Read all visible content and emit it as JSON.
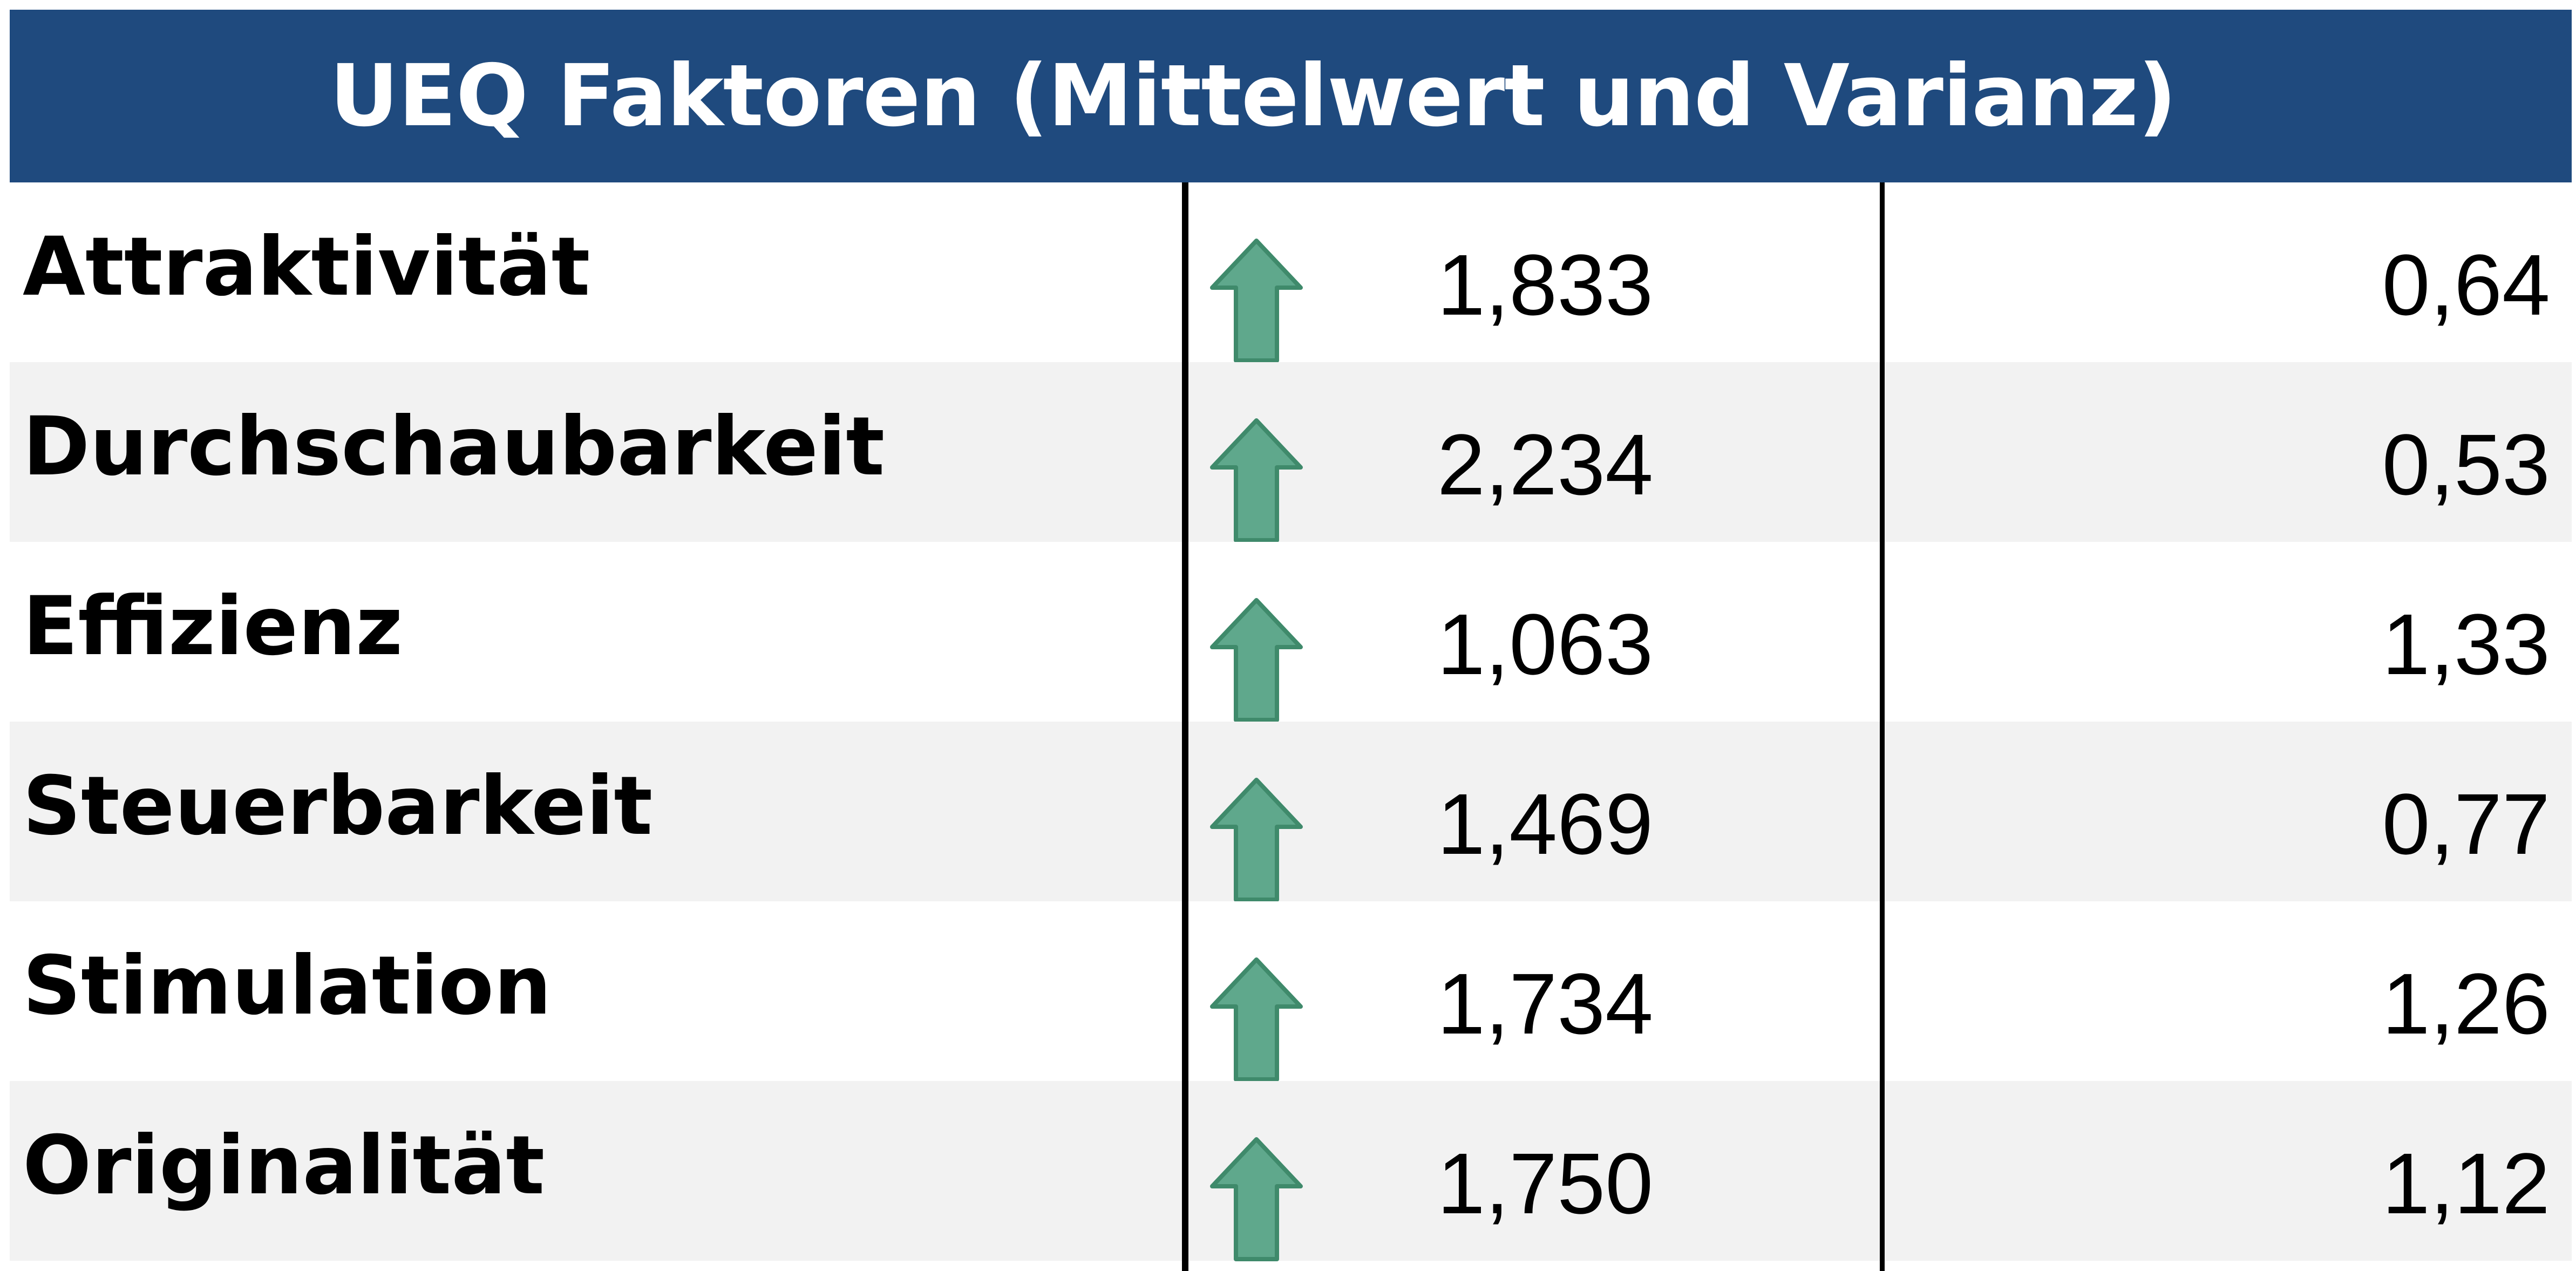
{
  "table": {
    "title": "UEQ Faktoren (Mittelwert und Varianz)",
    "trend_icon": "up-arrow-icon",
    "colors": {
      "header_bg": "#1f4a7e",
      "header_text": "#ffffff",
      "row_shaded": "#f2f2f2",
      "arrow_fill": "#5fa88c",
      "arrow_stroke": "#3f8a6b"
    },
    "rows": [
      {
        "factor": "Attraktivität",
        "mean": "1,833",
        "variance": "0,64",
        "trend": "up"
      },
      {
        "factor": "Durchschaubarkeit",
        "mean": "2,234",
        "variance": "0,53",
        "trend": "up"
      },
      {
        "factor": "Effizienz",
        "mean": "1,063",
        "variance": "1,33",
        "trend": "up"
      },
      {
        "factor": "Steuerbarkeit",
        "mean": "1,469",
        "variance": "0,77",
        "trend": "up"
      },
      {
        "factor": "Stimulation",
        "mean": "1,734",
        "variance": "1,26",
        "trend": "up"
      },
      {
        "factor": "Originalität",
        "mean": "1,750",
        "variance": "1,12",
        "trend": "up"
      }
    ]
  }
}
